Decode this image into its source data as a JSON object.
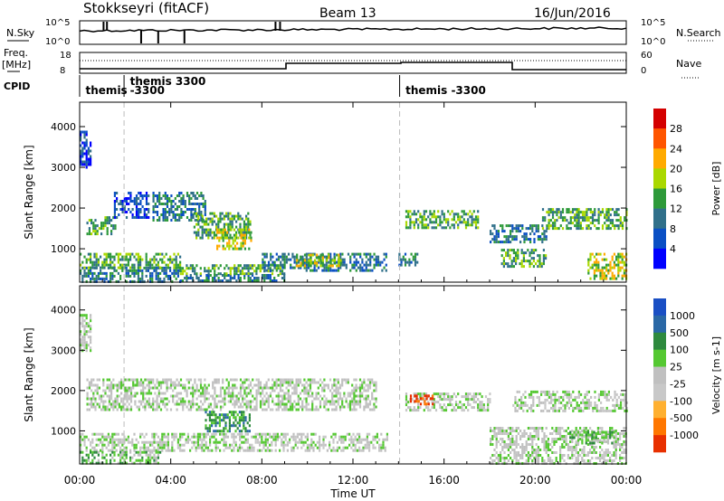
{
  "header": {
    "site": "Stokkseyri (fitACF)",
    "beam": "Beam 13",
    "date": "16/Jun/2016"
  },
  "top_panel": {
    "left_label": "N.Sky",
    "left_ticks": [
      "10^5",
      "10^0"
    ],
    "right_label": "N.Search",
    "right_ticks": [
      "10^5",
      "10^0"
    ]
  },
  "freq_panel": {
    "left_label": "Freq.",
    "left_unit": "[MHz]",
    "left_ticks": [
      "18",
      "8"
    ],
    "right_label": "Nave",
    "right_ticks": [
      "60",
      "0"
    ]
  },
  "cpid": {
    "label": "CPID",
    "segments": [
      {
        "text": "themis",
        "hour": 0.1,
        "row": 1
      },
      {
        "text": "themis  3300",
        "hour": 2.05,
        "row": 0
      },
      {
        "text": "-3300",
        "hour": 2.05,
        "row": 1
      },
      {
        "text": "themis  -3300",
        "hour": 14.15,
        "row": 1
      }
    ],
    "separators_hour": [
      1.95,
      14.05
    ]
  },
  "chart_data": [
    {
      "type": "heatmap",
      "name": "power",
      "ylabel": "Slant Range [km]",
      "ylim": [
        180,
        4600
      ],
      "yticks": [
        1000,
        2000,
        3000,
        4000
      ],
      "colorbar": {
        "label": "Power [dB]",
        "ticks": [
          "28",
          "24",
          "20",
          "16",
          "12",
          "8",
          "4"
        ],
        "colors": [
          "#d40000",
          "#ff5500",
          "#ffaa00",
          "#aad800",
          "#2e9a3a",
          "#30708a",
          "#0a4fc4",
          "#0000ff"
        ]
      },
      "bands": [
        {
          "h0": 0.0,
          "h1": 4.4,
          "r0": 200,
          "r1": 560,
          "level": 5
        },
        {
          "h0": 0.0,
          "h1": 4.4,
          "r0": 560,
          "r1": 900,
          "level": 4
        },
        {
          "h0": 4.4,
          "h1": 9.0,
          "r0": 200,
          "r1": 380,
          "level": 5
        },
        {
          "h0": 4.4,
          "h1": 9.0,
          "r0": 380,
          "r1": 620,
          "level": 4
        },
        {
          "h0": 8.0,
          "h1": 13.5,
          "r0": 500,
          "r1": 900,
          "level": 5
        },
        {
          "h0": 9.5,
          "h1": 11.5,
          "r0": 600,
          "r1": 880,
          "level": 3
        },
        {
          "h0": 0.3,
          "h1": 1.6,
          "r0": 1400,
          "r1": 1800,
          "level": 4
        },
        {
          "h0": 1.5,
          "h1": 3.0,
          "r0": 1800,
          "r1": 2400,
          "level": 6
        },
        {
          "h0": 3.2,
          "h1": 5.5,
          "r0": 1700,
          "r1": 2400,
          "level": 5
        },
        {
          "h0": 5.0,
          "h1": 7.5,
          "r0": 1300,
          "r1": 1900,
          "level": 4
        },
        {
          "h0": 6.0,
          "h1": 7.5,
          "r0": 1000,
          "r1": 1500,
          "level": 3
        },
        {
          "h0": 0.0,
          "h1": 0.5,
          "r0": 3000,
          "r1": 3900,
          "level": 6
        },
        {
          "h0": 14.0,
          "h1": 14.8,
          "r0": 600,
          "r1": 900,
          "level": 5
        },
        {
          "h0": 14.3,
          "h1": 17.5,
          "r0": 1550,
          "r1": 1950,
          "level": 4
        },
        {
          "h0": 18.0,
          "h1": 20.5,
          "r0": 1200,
          "r1": 1600,
          "level": 5
        },
        {
          "h0": 18.5,
          "h1": 20.5,
          "r0": 600,
          "r1": 1000,
          "level": 4
        },
        {
          "h0": 20.3,
          "h1": 24.0,
          "r0": 1500,
          "r1": 2000,
          "level": 4
        },
        {
          "h0": 22.3,
          "h1": 24.0,
          "r0": 300,
          "r1": 900,
          "level": 3
        }
      ]
    },
    {
      "type": "heatmap",
      "name": "velocity",
      "ylabel": "Slant Range [km]",
      "xlabel": "Time UT",
      "xticks": [
        "00:00",
        "04:00",
        "08:00",
        "12:00",
        "16:00",
        "20:00",
        "00:00"
      ],
      "ylim": [
        180,
        4600
      ],
      "yticks": [
        1000,
        2000,
        3000,
        4000
      ],
      "colorbar": {
        "label": "Velocity [m s-1]",
        "ticks": [
          "1000",
          "500",
          "100",
          "25",
          "-25",
          "-100",
          "-500",
          "-1000"
        ],
        "colors": [
          "#1a4fc4",
          "#2a68a6",
          "#2e8a3e",
          "#55c832",
          "#c0c0c0",
          "#c8c8c8",
          "#ffb030",
          "#ff7700",
          "#e83000"
        ]
      },
      "bands": [
        {
          "h0": 0.0,
          "h1": 13.5,
          "r0": 500,
          "r1": 950,
          "level": 4
        },
        {
          "h0": 0.0,
          "h1": 3.5,
          "r0": 200,
          "r1": 500,
          "level": 3
        },
        {
          "h0": 0.3,
          "h1": 13.0,
          "r0": 1500,
          "r1": 2300,
          "level": 4
        },
        {
          "h0": 5.5,
          "h1": 7.5,
          "r0": 1000,
          "r1": 1500,
          "level": 2
        },
        {
          "h0": 14.3,
          "h1": 18.0,
          "r0": 1500,
          "r1": 1950,
          "level": 4
        },
        {
          "h0": 14.5,
          "h1": 15.5,
          "r0": 1650,
          "r1": 1900,
          "level": 8
        },
        {
          "h0": 18.0,
          "h1": 24.0,
          "r0": 200,
          "r1": 1100,
          "level": 4
        },
        {
          "h0": 21.5,
          "h1": 23.5,
          "r0": 700,
          "r1": 1000,
          "level": 3
        },
        {
          "h0": 19.0,
          "h1": 24.0,
          "r0": 1500,
          "r1": 2000,
          "level": 4
        },
        {
          "h0": 0.0,
          "h1": 0.5,
          "r0": 3000,
          "r1": 3900,
          "level": 4
        }
      ]
    }
  ]
}
